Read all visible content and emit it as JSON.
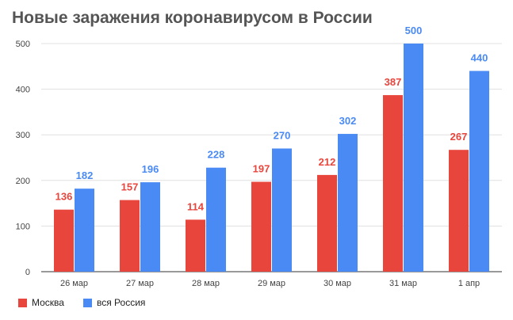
{
  "colors": {
    "moscow": "#e8453c",
    "russia": "#4a8af4",
    "grid": "#e0e0e0",
    "axis": "#333333",
    "tick_text": "#444444"
  },
  "legend": {
    "moscow_label": "Москва",
    "russia_label": "вся Россия"
  },
  "chart_data": {
    "type": "bar",
    "title": "Новые заражения коронавирусом в России",
    "xlabel": "",
    "ylabel": "",
    "categories": [
      "26 мар",
      "27 мар",
      "28 мар",
      "29 мар",
      "30 мар",
      "31 мар",
      "1 апр"
    ],
    "series": [
      {
        "name": "Москва",
        "values": [
          136,
          157,
          114,
          197,
          212,
          387,
          267
        ]
      },
      {
        "name": "вся Россия",
        "values": [
          182,
          196,
          228,
          270,
          302,
          500,
          440
        ]
      }
    ],
    "ylim": [
      0,
      500
    ],
    "yticks": [
      0,
      100,
      200,
      300,
      400,
      500
    ],
    "grid": true,
    "data_labels": true,
    "legend_position": "bottom-left"
  }
}
